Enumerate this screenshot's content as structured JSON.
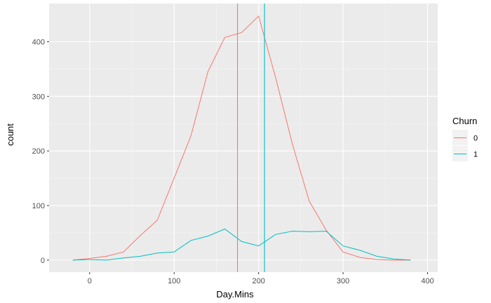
{
  "chart_data": {
    "type": "line",
    "xlabel": "Day.Mins",
    "ylabel": "count",
    "xlim": [
      -48,
      412
    ],
    "ylim": [
      -22,
      470
    ],
    "x_ticks": [
      0,
      100,
      200,
      300,
      400
    ],
    "y_ticks": [
      0,
      100,
      200,
      300,
      400
    ],
    "x_minor": [
      50,
      150,
      250,
      350
    ],
    "y_minor": [
      50,
      150,
      250,
      350
    ],
    "grid": true,
    "background": "#EBEBEB",
    "legend": {
      "title": "Churn",
      "position": "right"
    },
    "series": [
      {
        "name": "0",
        "color": "#F8766D",
        "points": [
          {
            "x": -20,
            "y": 0
          },
          {
            "x": 0,
            "y": 3
          },
          {
            "x": 20,
            "y": 7
          },
          {
            "x": 40,
            "y": 15
          },
          {
            "x": 60,
            "y": 45
          },
          {
            "x": 80,
            "y": 73
          },
          {
            "x": 100,
            "y": 150
          },
          {
            "x": 120,
            "y": 228
          },
          {
            "x": 140,
            "y": 345
          },
          {
            "x": 160,
            "y": 408
          },
          {
            "x": 180,
            "y": 417
          },
          {
            "x": 200,
            "y": 447
          },
          {
            "x": 220,
            "y": 335
          },
          {
            "x": 240,
            "y": 212
          },
          {
            "x": 260,
            "y": 108
          },
          {
            "x": 280,
            "y": 55
          },
          {
            "x": 300,
            "y": 15
          },
          {
            "x": 320,
            "y": 5
          },
          {
            "x": 340,
            "y": 1
          },
          {
            "x": 360,
            "y": 0
          },
          {
            "x": 380,
            "y": 0
          }
        ]
      },
      {
        "name": "1",
        "color": "#00BFC4",
        "points": [
          {
            "x": -20,
            "y": 0
          },
          {
            "x": 0,
            "y": 1
          },
          {
            "x": 20,
            "y": 0
          },
          {
            "x": 40,
            "y": 4
          },
          {
            "x": 60,
            "y": 7
          },
          {
            "x": 80,
            "y": 13
          },
          {
            "x": 100,
            "y": 15
          },
          {
            "x": 120,
            "y": 36
          },
          {
            "x": 140,
            "y": 44
          },
          {
            "x": 160,
            "y": 57
          },
          {
            "x": 180,
            "y": 34
          },
          {
            "x": 200,
            "y": 26
          },
          {
            "x": 220,
            "y": 47
          },
          {
            "x": 240,
            "y": 53
          },
          {
            "x": 260,
            "y": 52
          },
          {
            "x": 280,
            "y": 53
          },
          {
            "x": 300,
            "y": 26
          },
          {
            "x": 320,
            "y": 18
          },
          {
            "x": 340,
            "y": 7
          },
          {
            "x": 360,
            "y": 2
          },
          {
            "x": 380,
            "y": 0
          }
        ]
      }
    ],
    "vlines": [
      {
        "series": "0",
        "x": 175,
        "color": "#F8766D"
      },
      {
        "series": "1",
        "x": 207,
        "color": "#00BFC4"
      }
    ]
  }
}
